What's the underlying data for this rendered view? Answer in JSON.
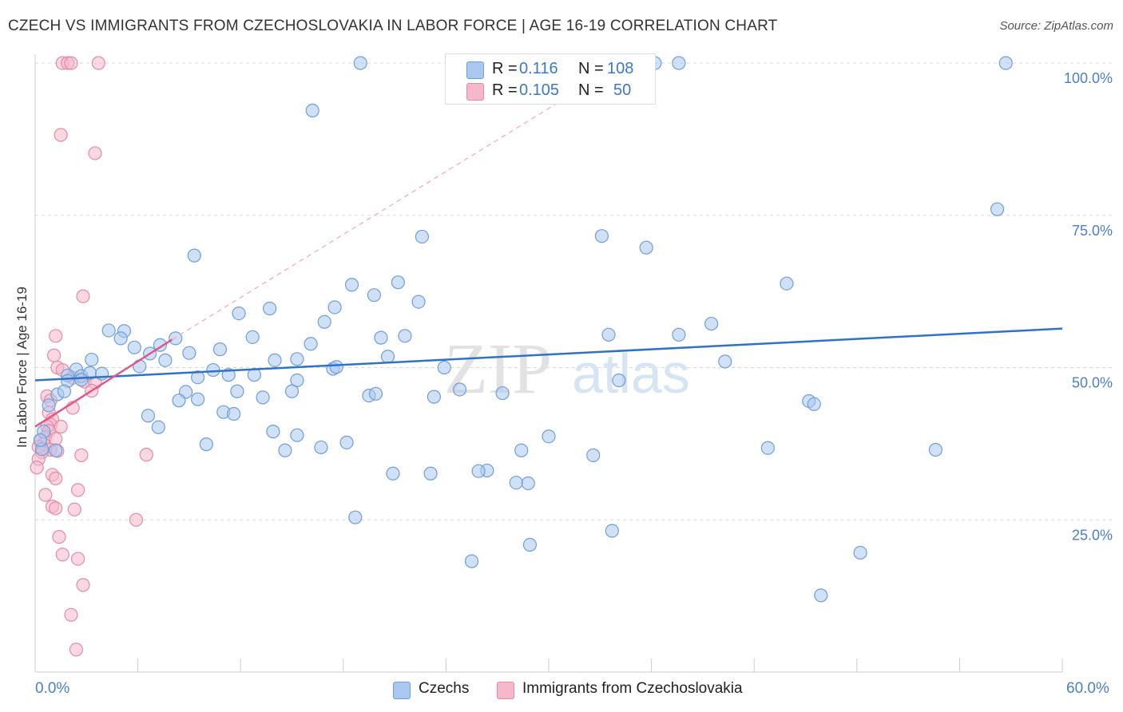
{
  "title": "CZECH VS IMMIGRANTS FROM CZECHOSLOVAKIA IN LABOR FORCE | AGE 16-19 CORRELATION CHART",
  "source": "Source: ZipAtlas.com",
  "watermark": {
    "zip": "ZIP",
    "atlas": "atlas"
  },
  "legend": {
    "czechs": {
      "r_label": "R =",
      "r_value": "0.116",
      "n_label": "N =",
      "n_value": "108"
    },
    "immigrants": {
      "r_label": "R =",
      "r_value": "0.105",
      "n_label": "N =",
      "n_value": "50"
    }
  },
  "bottom_legend": {
    "czechs": "Czechs",
    "immigrants": "Immigrants from Czechoslovakia"
  },
  "colors": {
    "czech_fill": "#aac8ef",
    "czech_stroke": "#6f9fd8",
    "czech_line": "#2f72c9",
    "imm_fill": "#f5b8cb",
    "imm_stroke": "#e58aa7",
    "imm_line": "#e0578a",
    "grid": "#d9d9d9",
    "tick": "#4a7fc9"
  },
  "chart_data": {
    "type": "scatter",
    "title": "CZECH VS IMMIGRANTS FROM CZECHOSLOVAKIA IN LABOR FORCE | AGE 16-19 CORRELATION CHART",
    "xlabel": "",
    "ylabel": "In Labor Force | Age 16-19",
    "xlim": [
      0,
      60
    ],
    "ylim": [
      0,
      100
    ],
    "x_tick_labels": [
      "0.0%",
      "60.0%"
    ],
    "y_ticks": [
      25,
      50,
      75,
      100
    ],
    "y_tick_labels": [
      "25.0%",
      "50.0%",
      "75.0%",
      "100.0%"
    ],
    "series": [
      {
        "name": "Czechs",
        "R": 0.116,
        "N": 108,
        "trend": {
          "x": [
            0,
            60
          ],
          "y": [
            47.9,
            56.4
          ],
          "dashed": false
        },
        "points": [
          [
            19.0,
            100
          ],
          [
            29.2,
            100
          ],
          [
            29.7,
            100
          ],
          [
            36.2,
            100
          ],
          [
            37.6,
            100
          ],
          [
            56.7,
            100
          ],
          [
            16.2,
            92.2
          ],
          [
            31.4,
            94.7
          ],
          [
            56.2,
            76.0
          ],
          [
            22.6,
            71.5
          ],
          [
            33.1,
            71.6
          ],
          [
            35.7,
            69.7
          ],
          [
            9.3,
            68.4
          ],
          [
            43.9,
            63.8
          ],
          [
            18.5,
            63.6
          ],
          [
            21.2,
            64.0
          ],
          [
            19.8,
            61.9
          ],
          [
            17.5,
            59.9
          ],
          [
            22.4,
            60.8
          ],
          [
            13.7,
            59.7
          ],
          [
            11.9,
            58.9
          ],
          [
            16.9,
            57.5
          ],
          [
            4.3,
            56.1
          ],
          [
            5.2,
            56.0
          ],
          [
            5.0,
            54.8
          ],
          [
            12.7,
            55.0
          ],
          [
            20.2,
            54.9
          ],
          [
            21.6,
            55.2
          ],
          [
            33.5,
            55.4
          ],
          [
            37.6,
            55.4
          ],
          [
            39.5,
            57.2
          ],
          [
            8.2,
            54.8
          ],
          [
            16.1,
            53.9
          ],
          [
            7.3,
            53.7
          ],
          [
            10.8,
            53.0
          ],
          [
            5.8,
            53.3
          ],
          [
            6.7,
            52.3
          ],
          [
            9.0,
            52.4
          ],
          [
            20.6,
            51.8
          ],
          [
            14.0,
            51.2
          ],
          [
            15.3,
            51.4
          ],
          [
            7.6,
            51.2
          ],
          [
            40.3,
            51.0
          ],
          [
            3.3,
            51.3
          ],
          [
            6.1,
            50.2
          ],
          [
            10.4,
            49.6
          ],
          [
            2.4,
            49.7
          ],
          [
            2.7,
            48.6
          ],
          [
            3.2,
            49.1
          ],
          [
            3.9,
            49.0
          ],
          [
            1.9,
            48.7
          ],
          [
            11.3,
            48.8
          ],
          [
            12.8,
            48.8
          ],
          [
            17.4,
            49.8
          ],
          [
            17.6,
            50.1
          ],
          [
            9.5,
            48.4
          ],
          [
            23.9,
            50.0
          ],
          [
            15.3,
            47.9
          ],
          [
            2.7,
            48.0
          ],
          [
            1.9,
            47.8
          ],
          [
            34.1,
            47.9
          ],
          [
            8.8,
            46.0
          ],
          [
            11.8,
            46.1
          ],
          [
            15.0,
            46.1
          ],
          [
            24.8,
            46.4
          ],
          [
            19.5,
            45.4
          ],
          [
            19.9,
            45.7
          ],
          [
            27.3,
            45.8
          ],
          [
            1.3,
            45.6
          ],
          [
            1.7,
            46.1
          ],
          [
            13.3,
            45.1
          ],
          [
            23.3,
            45.2
          ],
          [
            8.4,
            44.6
          ],
          [
            9.5,
            44.8
          ],
          [
            45.2,
            44.5
          ],
          [
            45.5,
            44.0
          ],
          [
            0.8,
            43.8
          ],
          [
            11.0,
            42.7
          ],
          [
            11.6,
            42.4
          ],
          [
            6.6,
            42.1
          ],
          [
            7.2,
            40.2
          ],
          [
            13.9,
            39.5
          ],
          [
            15.3,
            38.9
          ],
          [
            30.0,
            38.7
          ],
          [
            0.5,
            39.5
          ],
          [
            10.0,
            37.4
          ],
          [
            18.2,
            37.7
          ],
          [
            16.7,
            36.9
          ],
          [
            42.8,
            36.8
          ],
          [
            52.6,
            36.5
          ],
          [
            14.6,
            36.4
          ],
          [
            28.4,
            36.4
          ],
          [
            32.6,
            35.6
          ],
          [
            26.4,
            33.1
          ],
          [
            20.9,
            32.6
          ],
          [
            23.1,
            32.6
          ],
          [
            25.9,
            33.0
          ],
          [
            28.1,
            31.1
          ],
          [
            28.8,
            31.0
          ],
          [
            18.7,
            25.4
          ],
          [
            33.7,
            23.2
          ],
          [
            28.9,
            20.9
          ],
          [
            48.2,
            19.6
          ],
          [
            25.5,
            18.2
          ],
          [
            45.9,
            12.6
          ],
          [
            0.4,
            36.6
          ],
          [
            1.2,
            36.4
          ],
          [
            0.3,
            38.1
          ]
        ]
      },
      {
        "name": "Immigrants from Czechoslovakia",
        "R": 0.105,
        "N": 50,
        "trend": {
          "x": [
            0,
            8
          ],
          "y": [
            40.3,
            54.6
          ],
          "dashed": false
        },
        "trend_dashed": {
          "x": [
            8,
            32
          ],
          "y": [
            54.6,
            96.0
          ],
          "dashed": true
        },
        "points": [
          [
            1.6,
            100
          ],
          [
            1.9,
            100
          ],
          [
            2.1,
            100
          ],
          [
            3.7,
            100
          ],
          [
            1.5,
            88.2
          ],
          [
            3.5,
            85.2
          ],
          [
            2.8,
            61.7
          ],
          [
            1.2,
            55.2
          ],
          [
            1.1,
            52.0
          ],
          [
            1.3,
            50.0
          ],
          [
            1.6,
            49.6
          ],
          [
            2.2,
            48.3
          ],
          [
            2.9,
            47.7
          ],
          [
            3.5,
            47.5
          ],
          [
            3.3,
            46.2
          ],
          [
            0.7,
            45.3
          ],
          [
            0.9,
            44.6
          ],
          [
            2.2,
            43.4
          ],
          [
            0.8,
            42.6
          ],
          [
            1.0,
            41.5
          ],
          [
            0.9,
            40.6
          ],
          [
            0.7,
            40.3
          ],
          [
            1.5,
            40.3
          ],
          [
            0.8,
            39.6
          ],
          [
            0.6,
            38.6
          ],
          [
            1.2,
            38.3
          ],
          [
            0.3,
            37.9
          ],
          [
            0.5,
            37.4
          ],
          [
            0.2,
            37.0
          ],
          [
            0.9,
            36.5
          ],
          [
            1.3,
            36.3
          ],
          [
            0.4,
            36.1
          ],
          [
            2.7,
            35.6
          ],
          [
            6.5,
            35.7
          ],
          [
            0.2,
            35.0
          ],
          [
            0.1,
            33.6
          ],
          [
            1.0,
            32.4
          ],
          [
            1.2,
            31.8
          ],
          [
            2.5,
            29.9
          ],
          [
            0.6,
            29.1
          ],
          [
            1.0,
            27.2
          ],
          [
            1.2,
            26.9
          ],
          [
            2.3,
            26.7
          ],
          [
            5.9,
            25.0
          ],
          [
            1.4,
            22.2
          ],
          [
            1.6,
            19.3
          ],
          [
            2.5,
            18.6
          ],
          [
            2.8,
            14.3
          ],
          [
            2.1,
            9.4
          ],
          [
            2.4,
            3.7
          ]
        ]
      }
    ]
  }
}
